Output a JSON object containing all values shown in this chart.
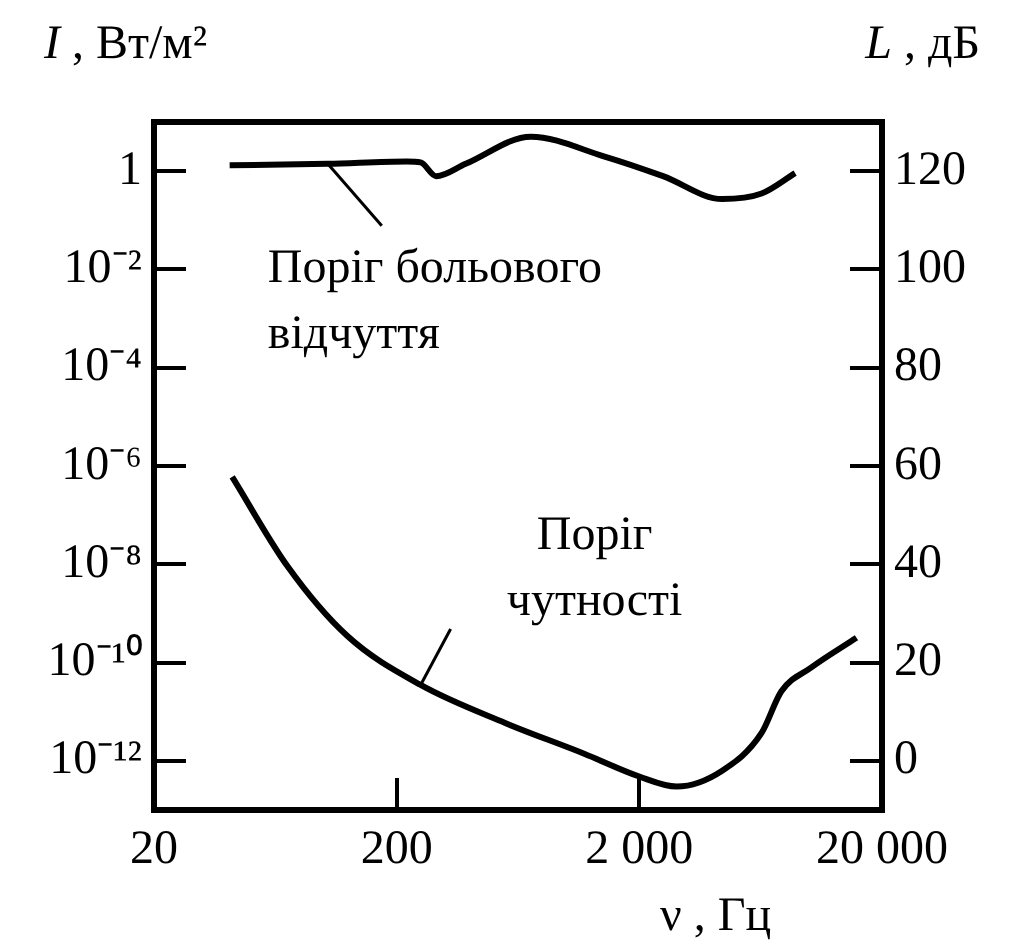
{
  "chart_data": {
    "type": "line",
    "ylabel": "I , Вт/м²",
    "y2label": "L , дБ",
    "xlabel": "ν , Гц",
    "log": "xy",
    "xlim": [
      20,
      20000
    ],
    "xticks": [
      20,
      200,
      {
        "value": 2000,
        "label": "2 000"
      },
      {
        "value": 20000,
        "label": "20 000"
      }
    ],
    "ylim": [
      1e-13,
      10
    ],
    "yticks": [
      {
        "value": 1e-12,
        "label": "10⁻¹²"
      },
      {
        "value": 1e-10,
        "label": "10⁻¹⁰"
      },
      {
        "value": 1e-08,
        "label": "10⁻⁸"
      },
      {
        "value": 1e-06,
        "label": "10⁻⁶"
      },
      {
        "value": 0.0001,
        "label": "10⁻⁴"
      },
      {
        "value": 0.01,
        "label": "10⁻²"
      },
      1
    ],
    "y2lim": [
      -10,
      130
    ],
    "y2ticks": [
      0,
      20,
      40,
      60,
      80,
      100,
      120
    ],
    "grid": false,
    "legend": false,
    "annotations": [
      {
        "text": "Поріг больового відчуття",
        "x": 104,
        "y": 1.41
      },
      {
        "text": "Поріг чутності",
        "x": 251,
        "y": 3.5e-11
      }
    ],
    "series": [
      {
        "color": "#000000",
        "x": [
          41,
          104,
          220,
          251,
          291,
          385,
          714,
          1428,
          2505,
          4390,
          6380,
          8770
        ],
        "values": [
          1.32,
          1.41,
          1.58,
          1.51,
          0.79,
          1.41,
          5.0,
          2.0,
          0.79,
          0.27,
          0.35,
          0.91
        ]
      },
      {
        "color": "#000000",
        "x": [
          42,
          71,
          125,
          251,
          560,
          1185,
          2000,
          2852,
          4390,
          6380,
          7700,
          10200,
          15700
        ],
        "values": [
          6e-07,
          9.1e-09,
          3.5e-10,
          3.5e-11,
          5.9e-12,
          1.4e-12,
          4.8e-13,
          3e-13,
          6.3e-13,
          3.7e-12,
          2.6e-11,
          7.9e-11,
          3.2e-10
        ]
      }
    ]
  }
}
